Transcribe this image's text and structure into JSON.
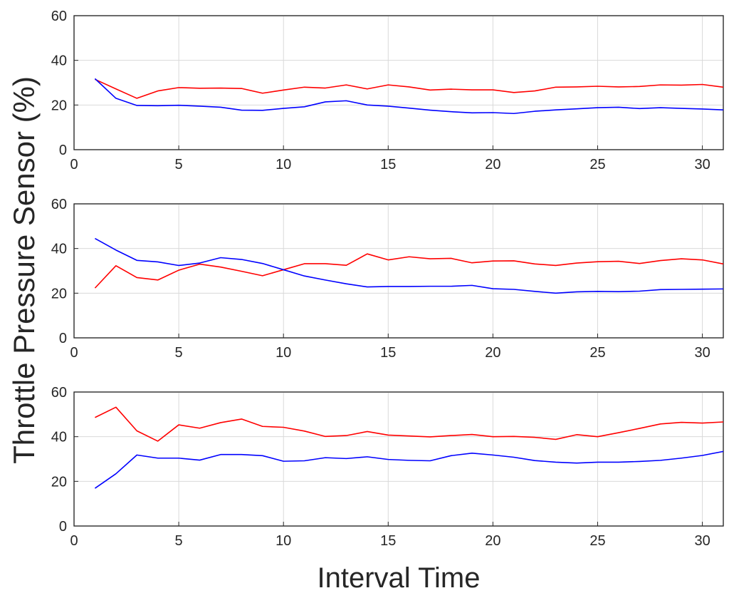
{
  "figure": {
    "xlabel": "Interval Time",
    "ylabel": "Throttle Pressure Sensor (%)"
  },
  "chart_data": [
    {
      "type": "line",
      "xlim": [
        0,
        31
      ],
      "ylim": [
        0,
        60
      ],
      "xticks": [
        0,
        5,
        10,
        15,
        20,
        25,
        30
      ],
      "yticks": [
        0,
        20,
        40,
        60
      ],
      "grid": true,
      "x": [
        1,
        2,
        3,
        4,
        5,
        6,
        7,
        8,
        9,
        10,
        11,
        12,
        13,
        14,
        15,
        16,
        17,
        18,
        19,
        20,
        21,
        22,
        23,
        24,
        25,
        26,
        27,
        28,
        29,
        30,
        31
      ],
      "series": [
        {
          "name": "red",
          "color": "#ff0000",
          "values": [
            31.5,
            27.2,
            23.0,
            26.3,
            27.8,
            27.5,
            27.6,
            27.4,
            25.3,
            26.7,
            28.0,
            27.6,
            29.0,
            27.2,
            29.0,
            28.1,
            26.7,
            27.1,
            26.8,
            26.8,
            25.6,
            26.3,
            28.0,
            28.1,
            28.4,
            28.1,
            28.3,
            29.0,
            28.9,
            29.2,
            28.0
          ]
        },
        {
          "name": "blue",
          "color": "#0000ff",
          "values": [
            31.8,
            23.0,
            19.8,
            19.7,
            19.9,
            19.5,
            19.0,
            17.7,
            17.6,
            18.5,
            19.2,
            21.4,
            21.9,
            20.0,
            19.5,
            18.6,
            17.7,
            17.0,
            16.5,
            16.6,
            16.2,
            17.2,
            17.8,
            18.3,
            18.8,
            19.0,
            18.4,
            18.8,
            18.5,
            18.2,
            17.8
          ]
        }
      ]
    },
    {
      "type": "line",
      "xlim": [
        0,
        31
      ],
      "ylim": [
        0,
        60
      ],
      "xticks": [
        0,
        5,
        10,
        15,
        20,
        25,
        30
      ],
      "yticks": [
        0,
        20,
        40,
        60
      ],
      "grid": true,
      "x": [
        1,
        2,
        3,
        4,
        5,
        6,
        7,
        8,
        9,
        10,
        11,
        12,
        13,
        14,
        15,
        16,
        17,
        18,
        19,
        20,
        21,
        22,
        23,
        24,
        25,
        26,
        27,
        28,
        29,
        30,
        31
      ],
      "series": [
        {
          "name": "red",
          "color": "#ff0000",
          "values": [
            22.3,
            32.3,
            27.0,
            25.9,
            30.3,
            33.0,
            31.7,
            29.8,
            27.8,
            30.5,
            33.2,
            33.2,
            32.5,
            37.6,
            34.9,
            36.3,
            35.4,
            35.6,
            33.6,
            34.4,
            34.5,
            33.1,
            32.4,
            33.5,
            34.1,
            34.3,
            33.3,
            34.6,
            35.4,
            34.9,
            33.1
          ]
        },
        {
          "name": "blue",
          "color": "#0000ff",
          "values": [
            44.5,
            39.3,
            34.7,
            34.0,
            32.4,
            33.5,
            35.9,
            35.1,
            33.3,
            30.5,
            27.7,
            25.9,
            24.2,
            22.8,
            23.0,
            23.0,
            23.1,
            23.1,
            23.5,
            22.0,
            21.7,
            20.8,
            20.0,
            20.6,
            20.8,
            20.7,
            20.9,
            21.6,
            21.7,
            21.8,
            21.9
          ]
        }
      ]
    },
    {
      "type": "line",
      "xlim": [
        0,
        31
      ],
      "ylim": [
        0,
        60
      ],
      "xticks": [
        0,
        5,
        10,
        15,
        20,
        25,
        30
      ],
      "yticks": [
        0,
        20,
        40,
        60
      ],
      "grid": true,
      "x": [
        1,
        2,
        3,
        4,
        5,
        6,
        7,
        8,
        9,
        10,
        11,
        12,
        13,
        14,
        15,
        16,
        17,
        18,
        19,
        20,
        21,
        22,
        23,
        24,
        25,
        26,
        27,
        28,
        29,
        30,
        31
      ],
      "series": [
        {
          "name": "red",
          "color": "#ff0000",
          "values": [
            48.6,
            53.2,
            42.6,
            38.0,
            45.3,
            43.8,
            46.3,
            47.9,
            44.6,
            44.2,
            42.5,
            40.1,
            40.5,
            42.3,
            40.7,
            40.3,
            39.9,
            40.5,
            41.0,
            40.0,
            40.1,
            39.7,
            38.8,
            40.9,
            40.0,
            41.8,
            43.7,
            45.7,
            46.4,
            46.1,
            46.6
          ]
        },
        {
          "name": "blue",
          "color": "#0000ff",
          "values": [
            16.9,
            23.4,
            31.8,
            30.4,
            30.4,
            29.5,
            32.0,
            32.0,
            31.5,
            29.0,
            29.2,
            30.6,
            30.2,
            31.0,
            29.8,
            29.4,
            29.2,
            31.5,
            32.6,
            31.8,
            30.8,
            29.3,
            28.6,
            28.2,
            28.6,
            28.6,
            28.9,
            29.4,
            30.4,
            31.6,
            33.4
          ]
        }
      ]
    }
  ]
}
